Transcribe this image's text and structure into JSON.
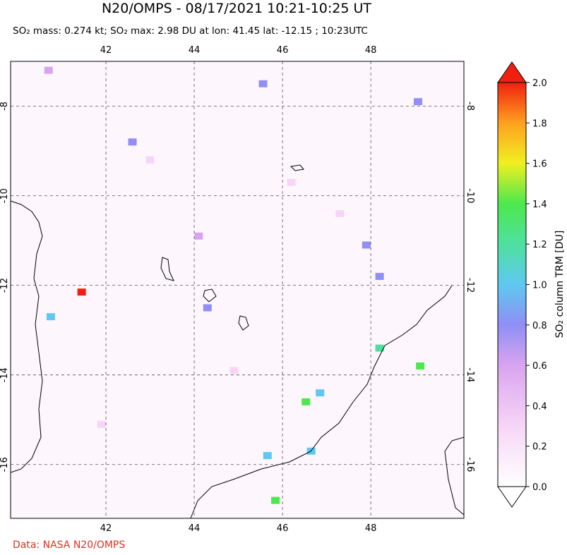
{
  "chart_data": {
    "type": "map",
    "title": "N20/OMPS - 08/17/2021 10:21-10:25 UT",
    "subtitle": "SO₂ mass: 0.274 kt; SO₂ max: 2.98 DU at lon: 41.45 lat: -12.15 ; 10:23UTC",
    "xlim": [
      39.84,
      50.11
    ],
    "ylim": [
      -17.2,
      -7.0
    ],
    "xticks": [
      42,
      44,
      46,
      48
    ],
    "yticks": [
      -8,
      -10,
      -12,
      -14,
      -16
    ],
    "grid": true,
    "colorbar": {
      "label": "SO₂ column TRM [DU]",
      "lim": [
        0,
        2
      ],
      "ticks": [
        {
          "value": 0,
          "label": "0.0"
        },
        {
          "value": 0.2,
          "label": "0.2"
        },
        {
          "value": 0.4,
          "label": "0.4"
        },
        {
          "value": 0.6,
          "label": "0.6"
        },
        {
          "value": 0.8,
          "label": "0.8"
        },
        {
          "value": 1,
          "label": "1.0"
        },
        {
          "value": 1.2,
          "label": "1.2"
        },
        {
          "value": 1.4,
          "label": "1.4"
        },
        {
          "value": 1.6,
          "label": "1.6"
        },
        {
          "value": 1.8,
          "label": "1.8"
        },
        {
          "value": 2,
          "label": "2.0"
        }
      ]
    },
    "pixels": {
      "lon": [
        41.45,
        40.75,
        46.53,
        49.12,
        45.84,
        48.2,
        46.85,
        45.66,
        46.65,
        45.56,
        49.07,
        42.6,
        47.9,
        40.7,
        44.1,
        44.3,
        48.2,
        43.0,
        46.2,
        41.9,
        47.3,
        44.9
      ],
      "lat": [
        -12.15,
        -12.7,
        -14.6,
        -13.8,
        -16.8,
        -13.4,
        -14.4,
        -15.8,
        -15.7,
        -7.5,
        -7.9,
        -8.8,
        -11.1,
        -7.2,
        -10.9,
        -12.5,
        -11.8,
        -9.2,
        -9.7,
        -15.1,
        -10.4,
        -13.9
      ],
      "values": [
        2.98,
        1.0,
        1.4,
        1.4,
        1.4,
        1.3,
        1.0,
        1.0,
        1.0,
        0.9,
        0.85,
        0.8,
        0.8,
        0.6,
        0.6,
        0.85,
        0.8,
        0.4,
        0.5,
        0.3,
        0.4,
        0.3
      ]
    },
    "footer": "Data: NASA N20/OMPS"
  }
}
